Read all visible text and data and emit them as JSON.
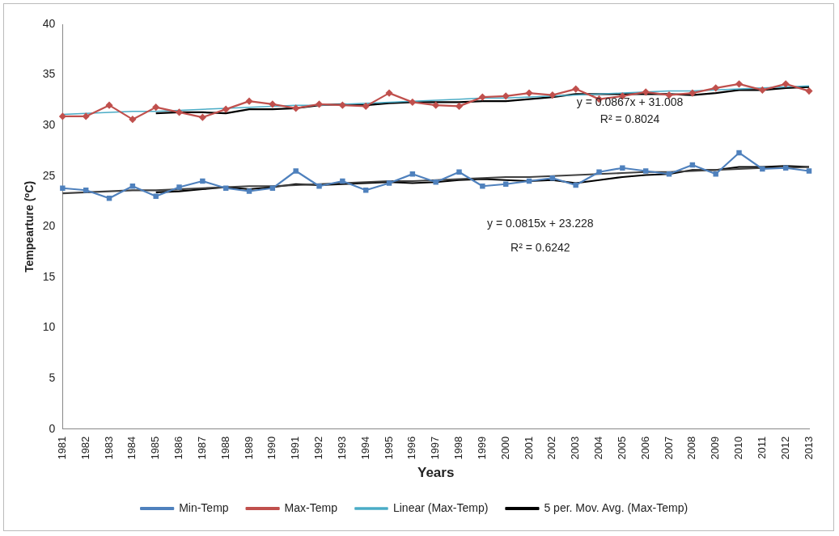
{
  "chart_data": {
    "type": "line",
    "xlabel": "Years",
    "ylabel": "Tempearture (⁰C)",
    "categories": [
      "1981",
      "1982",
      "1983",
      "1984",
      "1985",
      "1986",
      "1987",
      "1988",
      "1989",
      "1990",
      "1991",
      "1992",
      "1993",
      "1994",
      "1995",
      "1996",
      "1997",
      "1998",
      "1999",
      "2000",
      "2001",
      "2002",
      "2003",
      "2004",
      "2005",
      "2006",
      "2007",
      "2008",
      "2009",
      "2010",
      "2011",
      "2012",
      "2013"
    ],
    "series": [
      {
        "name": "Min-Temp",
        "color": "#4f81bd",
        "marker": "square",
        "values": [
          23.8,
          23.6,
          22.8,
          24.0,
          23.0,
          23.9,
          24.5,
          23.8,
          23.5,
          23.8,
          25.5,
          24.0,
          24.5,
          23.6,
          24.3,
          25.2,
          24.4,
          25.4,
          24.0,
          24.2,
          24.5,
          24.8,
          24.1,
          25.4,
          25.8,
          25.5,
          25.2,
          26.1,
          25.2,
          27.3,
          25.7,
          25.8,
          25.5
        ]
      },
      {
        "name": "Max-Temp",
        "color": "#c0504d",
        "marker": "diamond",
        "values": [
          30.9,
          30.9,
          32.0,
          30.6,
          31.8,
          31.3,
          30.8,
          31.6,
          32.4,
          32.1,
          31.7,
          32.1,
          32.0,
          31.9,
          33.2,
          32.3,
          32.0,
          31.9,
          32.8,
          32.9,
          33.2,
          33.0,
          33.6,
          32.6,
          32.9,
          33.3,
          33.0,
          33.2,
          33.7,
          34.1,
          33.5,
          34.1,
          33.4
        ]
      },
      {
        "name": "Linear (Max-Temp)",
        "color": "#4bacc6",
        "marker": "none",
        "values": [
          31.1,
          31.2,
          31.3,
          31.4,
          31.4,
          31.5,
          31.6,
          31.7,
          31.8,
          31.9,
          32.0,
          32.0,
          32.1,
          32.2,
          32.3,
          32.4,
          32.5,
          32.6,
          32.7,
          32.7,
          32.8,
          32.9,
          33.0,
          33.1,
          33.2,
          33.3,
          33.4,
          33.4,
          33.5,
          33.6,
          33.7,
          33.8,
          33.9
        ]
      },
      {
        "name": "5 per. Mov. Avg. (Max-Temp)",
        "color": "#000000",
        "marker": "none",
        "values": [
          null,
          null,
          null,
          null,
          31.2,
          31.3,
          31.3,
          31.2,
          31.6,
          31.6,
          31.7,
          32.0,
          32.1,
          32.0,
          32.2,
          32.3,
          32.3,
          32.3,
          32.4,
          32.4,
          32.6,
          32.8,
          33.1,
          33.1,
          33.1,
          33.1,
          33.1,
          33.0,
          33.2,
          33.5,
          33.5,
          33.7,
          33.8
        ]
      },
      {
        "color": "#404040",
        "marker": "none",
        "values": [
          23.3,
          23.4,
          23.5,
          23.6,
          23.6,
          23.7,
          23.8,
          23.9,
          24.0,
          24.0,
          24.1,
          24.2,
          24.3,
          24.4,
          24.5,
          24.5,
          24.6,
          24.7,
          24.8,
          24.9,
          24.9,
          25.0,
          25.1,
          25.2,
          25.3,
          25.4,
          25.4,
          25.5,
          25.6,
          25.7,
          25.8,
          25.8,
          25.9
        ]
      },
      {
        "color": "#000000",
        "marker": "none",
        "values": [
          null,
          null,
          null,
          null,
          23.4,
          23.5,
          23.7,
          23.9,
          23.7,
          23.9,
          24.2,
          24.1,
          24.2,
          24.3,
          24.4,
          24.3,
          24.4,
          24.6,
          24.7,
          24.6,
          24.5,
          24.6,
          24.3,
          24.6,
          24.9,
          25.1,
          25.2,
          25.6,
          25.6,
          25.9,
          25.9,
          26.0,
          25.9
        ]
      }
    ],
    "ylim": [
      0,
      40
    ],
    "yticks": [
      0,
      5,
      10,
      15,
      20,
      25,
      30,
      35,
      40
    ],
    "grid": false,
    "legend": "bottom",
    "annotations": [
      "y = 0.0867x + 31.008",
      "R² = 0.8024",
      "y = 0.0815x + 23.228",
      "R² = 0.6242"
    ]
  }
}
